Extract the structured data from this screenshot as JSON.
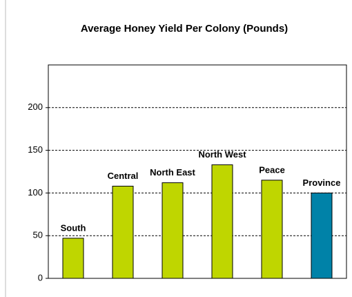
{
  "chart_data": {
    "type": "bar",
    "title": "Average Honey Yield Per Colony (Pounds)",
    "categories": [
      "South",
      "Central",
      "North East",
      "North West",
      "Peace",
      "Province"
    ],
    "values": [
      47,
      108,
      112,
      133,
      115,
      100
    ],
    "colors": [
      "#bfd600",
      "#bfd600",
      "#bfd600",
      "#bfd600",
      "#bfd600",
      "#0082a8"
    ],
    "ylim": [
      0,
      250
    ],
    "yticks": [
      0,
      50,
      100,
      150,
      200
    ],
    "grid": true
  }
}
